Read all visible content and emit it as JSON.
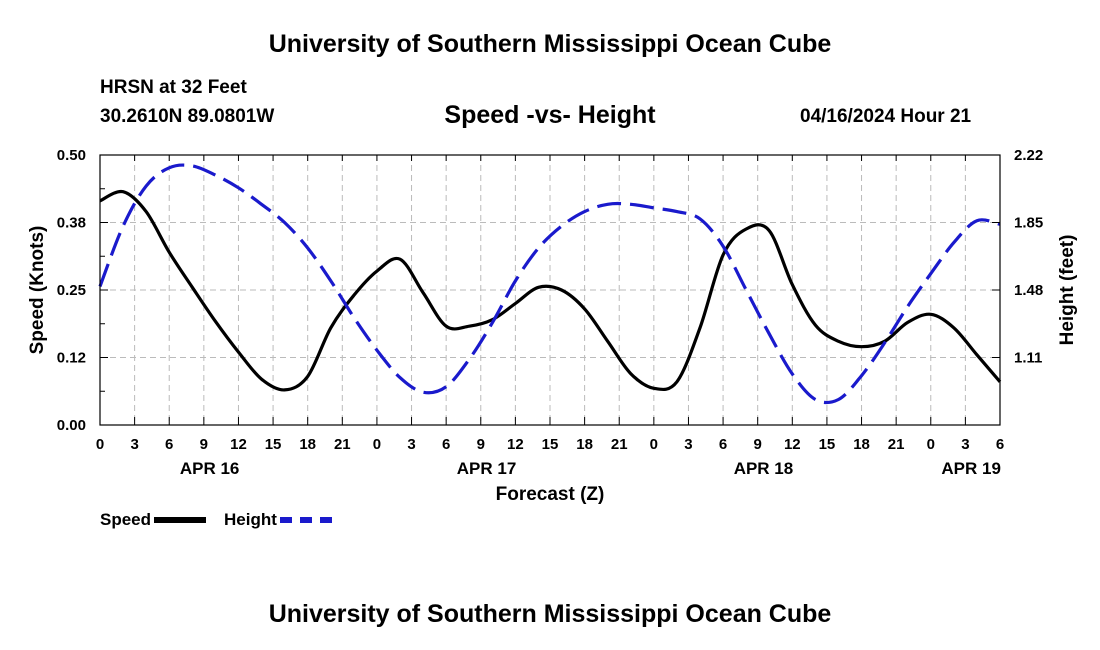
{
  "header": {
    "title": "University of Southern Mississippi Ocean Cube",
    "station": "HRSN at 32 Feet",
    "coordinates": "30.2610N  89.0801W",
    "datetime": "04/16/2024 Hour 21"
  },
  "footer": {
    "title": "University of Southern Mississippi Ocean Cube"
  },
  "legend": {
    "speed_label": "Speed",
    "height_label": "Height"
  },
  "colors": {
    "speed": "#000000",
    "height": "#1a1acc",
    "grid": "#bbbbbb"
  },
  "chart_data": {
    "type": "line",
    "title": "Speed -vs- Height",
    "xlabel": "Forecast (Z)",
    "ylabel": "Speed (Knots)",
    "y2label": "Height (feet)",
    "xlim": [
      0,
      78
    ],
    "ylim": [
      0,
      0.5
    ],
    "y2lim": [
      0.74,
      2.22
    ],
    "x_ticks": [
      0,
      3,
      6,
      9,
      12,
      15,
      18,
      21,
      24,
      27,
      30,
      33,
      36,
      39,
      42,
      45,
      48,
      51,
      54,
      57,
      60,
      63,
      66,
      69,
      72,
      75,
      78
    ],
    "x_tick_labels": [
      "0",
      "3",
      "6",
      "9",
      "12",
      "15",
      "18",
      "21",
      "0",
      "3",
      "6",
      "9",
      "12",
      "15",
      "18",
      "21",
      "0",
      "3",
      "6",
      "9",
      "12",
      "15",
      "18",
      "21",
      "0",
      "3",
      "6"
    ],
    "y_ticks": [
      0,
      0.125,
      0.25,
      0.375,
      0.5
    ],
    "y_tick_labels": [
      "0.00",
      "0.12",
      "0.25",
      "0.38",
      "0.50"
    ],
    "y2_ticks": [
      1.11,
      1.48,
      1.85,
      2.22
    ],
    "y2_tick_labels": [
      "1.11",
      "1.48",
      "1.85",
      "2.22"
    ],
    "date_labels": [
      {
        "x": 9.5,
        "label": "APR 16"
      },
      {
        "x": 33.5,
        "label": "APR 17"
      },
      {
        "x": 57.5,
        "label": "APR 18"
      },
      {
        "x": 75.5,
        "label": "APR 19"
      }
    ],
    "grid": true,
    "series": [
      {
        "name": "Speed",
        "axis": "left",
        "style": "solid",
        "x": [
          0,
          2,
          4,
          6,
          8,
          10,
          12,
          14,
          16,
          18,
          20,
          22,
          24,
          26,
          28,
          30,
          32,
          34,
          36,
          38,
          40,
          42,
          44,
          46,
          48,
          50,
          52,
          54,
          56,
          58,
          60,
          62,
          64,
          66,
          68,
          70,
          72,
          74,
          76,
          78
        ],
        "values": [
          0.415,
          0.432,
          0.395,
          0.32,
          0.255,
          0.192,
          0.135,
          0.085,
          0.065,
          0.09,
          0.18,
          0.24,
          0.285,
          0.307,
          0.245,
          0.183,
          0.183,
          0.195,
          0.225,
          0.255,
          0.25,
          0.215,
          0.155,
          0.095,
          0.068,
          0.08,
          0.18,
          0.315,
          0.363,
          0.36,
          0.26,
          0.185,
          0.155,
          0.145,
          0.155,
          0.19,
          0.205,
          0.18,
          0.13,
          0.08
        ]
      },
      {
        "name": "Height",
        "axis": "right",
        "style": "dashed",
        "x": [
          0,
          2,
          4,
          6,
          8,
          10,
          12,
          14,
          16,
          18,
          20,
          22,
          24,
          26,
          28,
          30,
          32,
          34,
          36,
          38,
          40,
          42,
          44,
          46,
          48,
          50,
          52,
          54,
          56,
          58,
          60,
          62,
          64,
          66,
          68,
          70,
          72,
          74,
          76,
          78
        ],
        "values": [
          1.5,
          1.83,
          2.05,
          2.15,
          2.16,
          2.11,
          2.04,
          1.95,
          1.85,
          1.71,
          1.53,
          1.33,
          1.15,
          1.0,
          0.92,
          0.95,
          1.1,
          1.3,
          1.53,
          1.71,
          1.83,
          1.91,
          1.95,
          1.95,
          1.93,
          1.91,
          1.87,
          1.72,
          1.48,
          1.24,
          1.02,
          0.88,
          0.88,
          1.01,
          1.19,
          1.39,
          1.57,
          1.74,
          1.86,
          1.84
        ]
      }
    ]
  }
}
